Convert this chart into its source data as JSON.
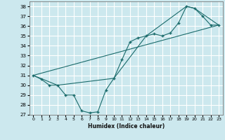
{
  "xlabel": "Humidex (Indice chaleur)",
  "xlim": [
    -0.5,
    23.5
  ],
  "ylim": [
    27,
    38.5
  ],
  "yticks": [
    27,
    28,
    29,
    30,
    31,
    32,
    33,
    34,
    35,
    36,
    37,
    38
  ],
  "xticks": [
    0,
    1,
    2,
    3,
    4,
    5,
    6,
    7,
    8,
    9,
    10,
    11,
    12,
    13,
    14,
    15,
    16,
    17,
    18,
    19,
    20,
    21,
    22,
    23
  ],
  "bg_color": "#cce8ee",
  "grid_color": "#ffffff",
  "line_color": "#1a6b6b",
  "line1_x": [
    0,
    1,
    2,
    3,
    4,
    5,
    6,
    7,
    8,
    9,
    10,
    11,
    12,
    13,
    14,
    15,
    16,
    17,
    18,
    19,
    20,
    21,
    22,
    23
  ],
  "line1_y": [
    31.0,
    30.6,
    30.0,
    30.0,
    29.0,
    29.0,
    27.4,
    27.2,
    27.3,
    29.5,
    30.7,
    32.6,
    34.4,
    34.8,
    35.0,
    35.2,
    35.0,
    35.3,
    36.3,
    38.0,
    37.8,
    37.0,
    36.1,
    36.1
  ],
  "line2_x": [
    0,
    3,
    10,
    14,
    19,
    20,
    23
  ],
  "line2_y": [
    31.0,
    30.0,
    30.7,
    35.0,
    38.0,
    37.8,
    36.1
  ],
  "line3_x": [
    0,
    23
  ],
  "line3_y": [
    31.0,
    36.1
  ]
}
